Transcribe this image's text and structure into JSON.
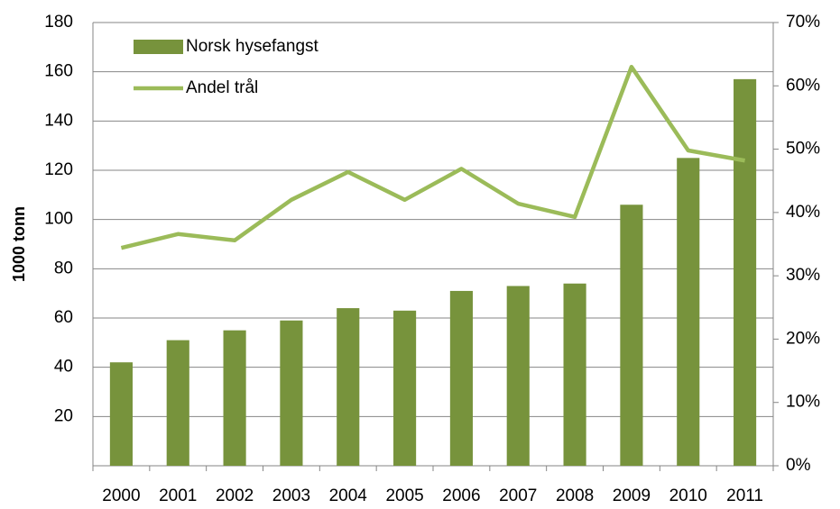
{
  "chart_data": {
    "type": "bar-line",
    "y_label": "1000 tonn",
    "categories": [
      "2000",
      "2001",
      "2002",
      "2003",
      "2004",
      "2005",
      "2006",
      "2007",
      "2008",
      "2009",
      "2010",
      "2011"
    ],
    "series": [
      {
        "name": "Norsk hysefangst",
        "type": "bar",
        "color": "#77933c",
        "values": [
          42,
          51,
          55,
          59,
          64,
          63,
          71,
          73,
          74,
          106,
          125,
          157
        ]
      },
      {
        "name": "Andel trål",
        "type": "line",
        "axis": "y2",
        "color": "#9bbb59",
        "values": [
          34.4,
          36.6,
          35.6,
          42.0,
          46.4,
          42.0,
          46.9,
          41.4,
          39.3,
          63.0,
          49.8,
          48.2
        ]
      }
    ],
    "ylim": [
      0,
      180
    ],
    "yticks": [
      20,
      40,
      60,
      80,
      100,
      120,
      140,
      160,
      180
    ],
    "y2lim": [
      0,
      70
    ],
    "y2ticks": [
      {
        "value": 0,
        "label": "0%"
      },
      {
        "value": 10,
        "label": "10%"
      },
      {
        "value": 20,
        "label": "20%"
      },
      {
        "value": 30,
        "label": "30%"
      },
      {
        "value": 40,
        "label": "40%"
      },
      {
        "value": 50,
        "label": "50%"
      },
      {
        "value": 60,
        "label": "60%"
      },
      {
        "value": 70,
        "label": "70%"
      }
    ],
    "grid": true,
    "legend": "top-left"
  }
}
